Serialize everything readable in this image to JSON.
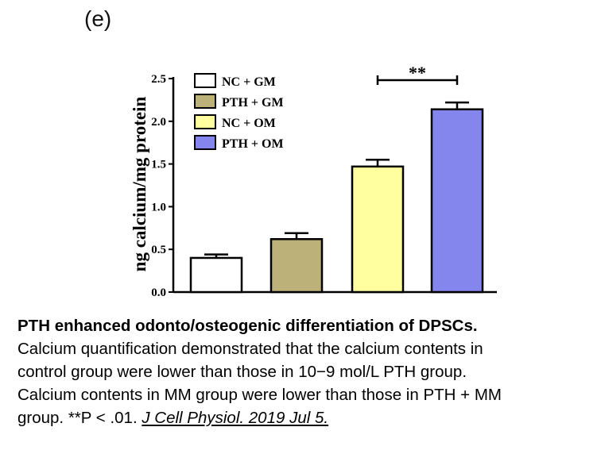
{
  "panel_label": "(e)",
  "chart_data": {
    "type": "bar",
    "categories": [
      "NC + GM",
      "PTH + GM",
      "NC + OM",
      "PTH + OM"
    ],
    "values": [
      0.4,
      0.62,
      1.47,
      2.14
    ],
    "errors": [
      0.04,
      0.07,
      0.08,
      0.08
    ],
    "colors": [
      "#ffffff",
      "#bdb17a",
      "#ffffa0",
      "#8585ee"
    ],
    "ylabel": "ng calcium/mg protein",
    "ylim": [
      0,
      2.5
    ],
    "yticks": [
      "0.0",
      "0.5",
      "1.0",
      "1.5",
      "2.0",
      "2.5"
    ],
    "legend": [
      "NC + GM",
      "PTH + GM",
      "NC + OM",
      "PTH + OM"
    ],
    "legend_position": "top-left",
    "grid": false,
    "significance": {
      "between": [
        2,
        3
      ],
      "label": "**"
    }
  },
  "caption": {
    "title": "PTH enhanced odonto/osteogenic differentiation of DPSCs.",
    "line1": "Calcium quantification demonstrated that the calcium contents in",
    "line2": "control group were lower than those in 10−9 mol/L PTH group.",
    "line3": "Calcium contents in MM group were lower than those in PTH + MM",
    "line4": "group. **P < .01.",
    "citation": "J Cell Physiol. 2019 Jul 5."
  }
}
